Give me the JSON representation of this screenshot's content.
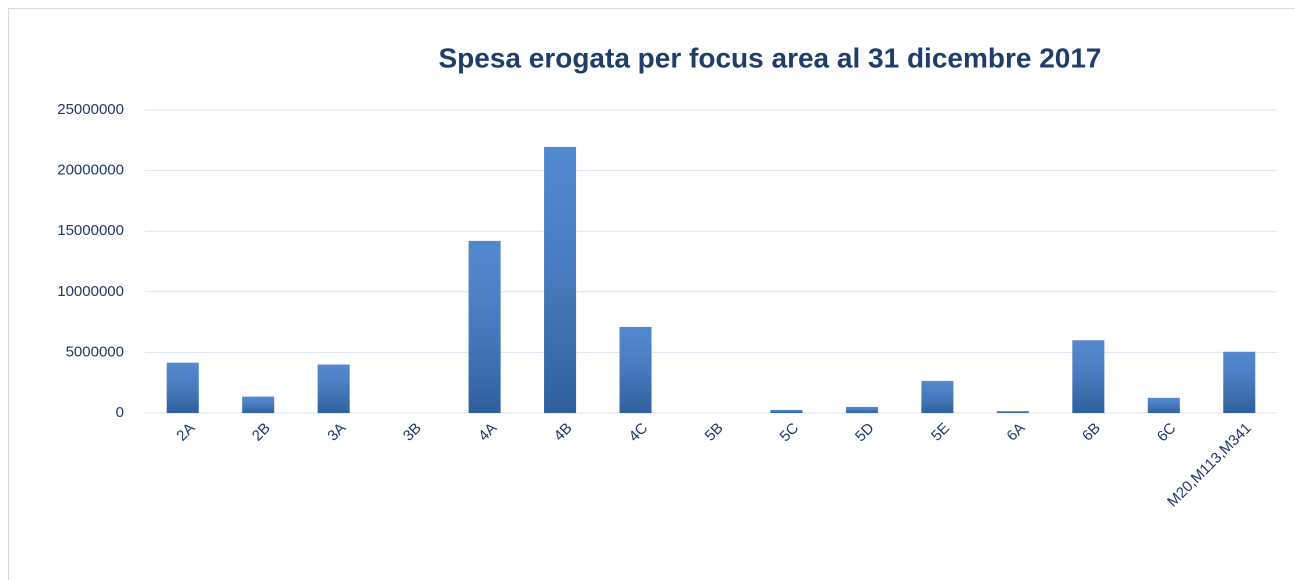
{
  "chart_data": {
    "type": "bar",
    "title": "Spesa erogata per focus area al 31 dicembre 2017",
    "categories": [
      "2A",
      "2B",
      "3A",
      "3B",
      "4A",
      "4B",
      "4C",
      "5B",
      "5C",
      "5D",
      "5E",
      "6A",
      "6B",
      "6C",
      "M20,M113,M341"
    ],
    "values": [
      4150000,
      1350000,
      4000000,
      0,
      14200000,
      21950000,
      7100000,
      0,
      250000,
      500000,
      2650000,
      150000,
      6000000,
      1250000,
      5050000
    ],
    "color": "#3b78c8",
    "ylim": [
      0,
      25000000
    ],
    "yticks": [
      0,
      5000000,
      10000000,
      15000000,
      20000000,
      25000000
    ],
    "grid": true
  }
}
